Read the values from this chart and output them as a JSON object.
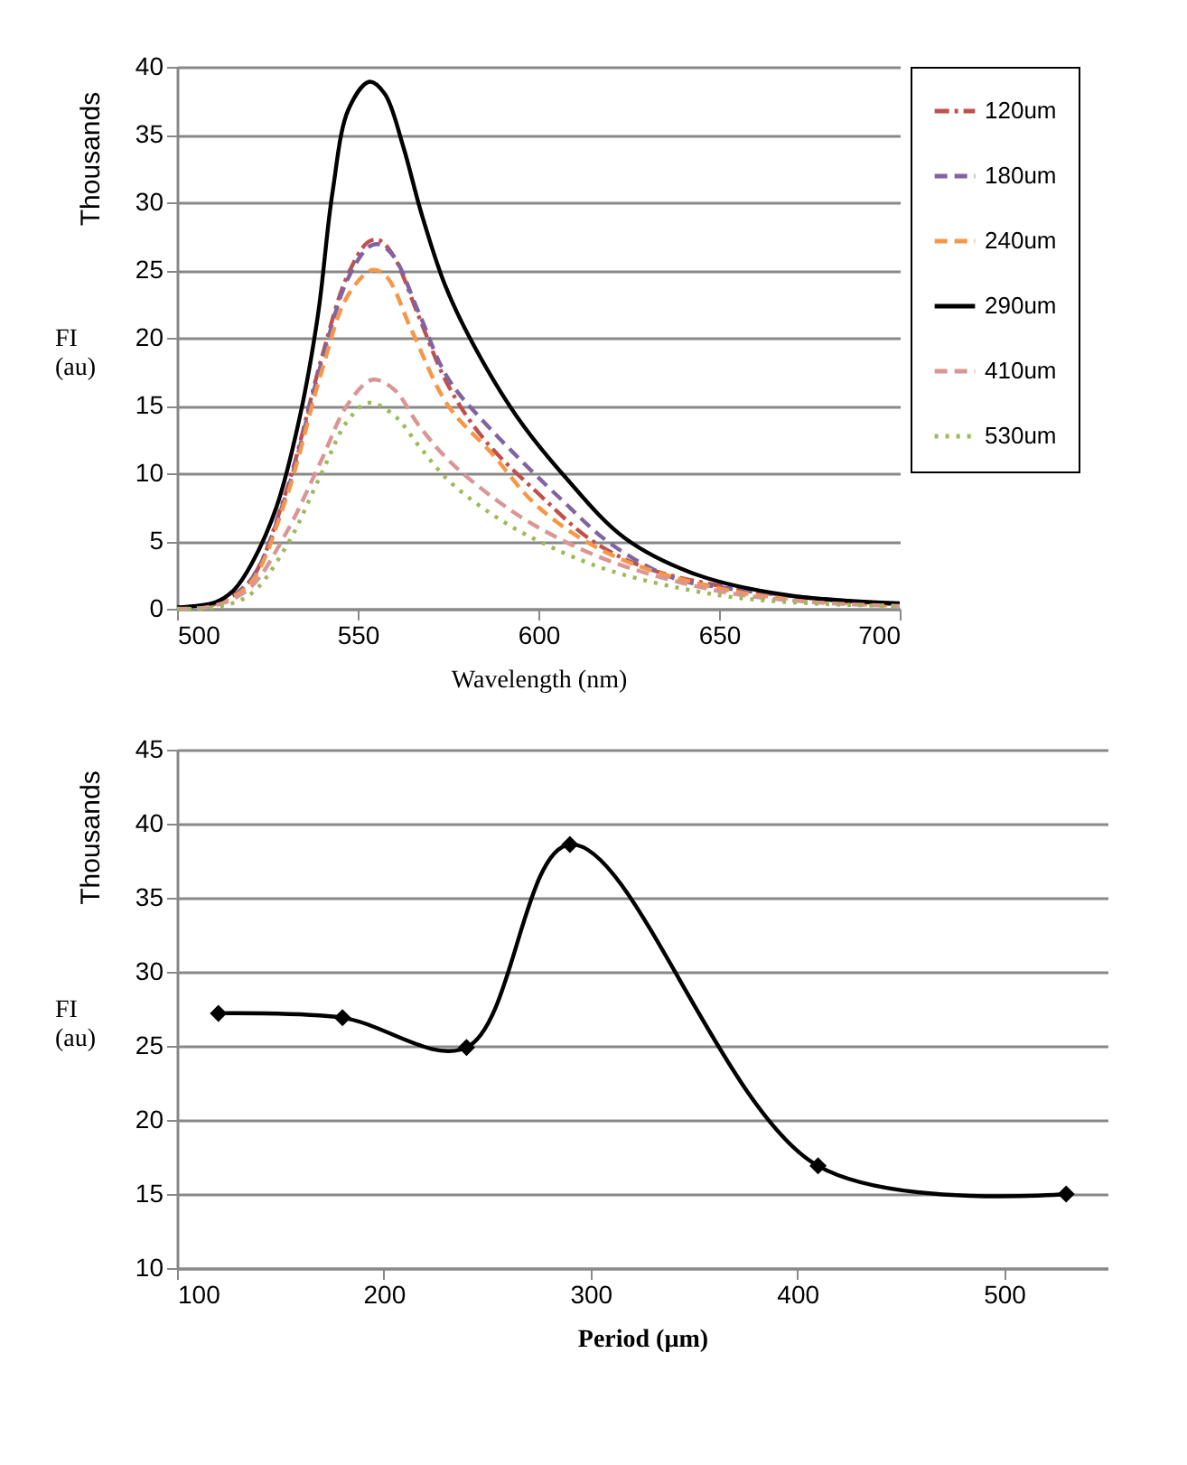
{
  "chart_data": [
    {
      "type": "line",
      "xlabel": "Wavelength (nm)",
      "ylabel": "FI (au)",
      "annotations": [
        "Thousands"
      ],
      "xlim": [
        500,
        700
      ],
      "xticks": [
        500,
        550,
        600,
        650,
        700
      ],
      "ylim": [
        0,
        40
      ],
      "yticks": [
        0,
        5,
        10,
        15,
        20,
        25,
        30,
        35,
        40
      ],
      "grid": "y",
      "legend": "right",
      "marker": "none",
      "series": [
        {
          "name": "120um",
          "color": "#c0504d",
          "line_style": "dashdot",
          "x": [
            500,
            510,
            520,
            530,
            540,
            547,
            553,
            556,
            560,
            567,
            575,
            585,
            600,
            615,
            630,
            650,
            675,
            700
          ],
          "values": [
            0,
            0.3,
            2,
            8.5,
            18.5,
            24.5,
            27.1,
            27.2,
            26,
            21.5,
            16.5,
            12.5,
            8.5,
            5,
            3,
            1.7,
            0.8,
            0.3
          ]
        },
        {
          "name": "180um",
          "color": "#8064a2",
          "line_style": "dashed",
          "x": [
            500,
            510,
            520,
            530,
            540,
            547,
            553,
            556,
            560,
            567,
            575,
            587,
            607,
            620,
            637,
            650,
            675,
            700
          ],
          "values": [
            0,
            0.3,
            2,
            8.3,
            18.2,
            24.2,
            26.7,
            26.9,
            26,
            21.8,
            17,
            13.2,
            7.9,
            4.8,
            2.3,
            1.6,
            0.8,
            0.3
          ]
        },
        {
          "name": "240um",
          "color": "#f79646",
          "line_style": "dashed",
          "x": [
            500,
            510,
            520,
            530,
            540,
            547,
            554,
            558,
            565,
            575,
            587,
            600,
            620,
            650,
            675,
            700
          ],
          "values": [
            0,
            0.3,
            1.8,
            8,
            17.5,
            23,
            25,
            24.5,
            20.5,
            15,
            11.5,
            7.5,
            4,
            1.5,
            0.6,
            0.2
          ]
        },
        {
          "name": "290um",
          "color": "#000000",
          "line_style": "solid",
          "x": [
            500,
            510.8,
            515.8,
            520.8,
            527.5,
            534,
            539,
            543,
            547.5,
            553.3,
            557.5,
            562.5,
            567.5,
            574,
            581,
            594,
            607.5,
            624,
            644,
            669,
            700
          ],
          "values": [
            0.1,
            0.5,
            1.4,
            3.4,
            7.5,
            14.2,
            21.7,
            30.7,
            36.9,
            38.9,
            38,
            34.2,
            29.3,
            24,
            20,
            14.2,
            9.7,
            5.2,
            2.5,
            1,
            0.4
          ]
        },
        {
          "name": "410um",
          "color": "#d99694",
          "line_style": "dashed",
          "x": [
            500,
            510,
            520,
            530,
            540,
            547,
            554,
            560,
            567,
            575,
            587,
            600,
            620,
            650,
            675,
            700
          ],
          "values": [
            0,
            0.2,
            1.5,
            5.5,
            11,
            15,
            16.9,
            16.2,
            13.5,
            11,
            8.3,
            6,
            3.5,
            1.3,
            0.5,
            0.2
          ]
        },
        {
          "name": "530um",
          "color": "#9bbb59",
          "line_style": "dotted",
          "x": [
            500,
            510,
            520,
            530,
            540,
            547,
            553,
            560,
            567,
            575,
            587,
            600,
            620,
            650,
            675,
            700
          ],
          "values": [
            0,
            0.1,
            1,
            4.5,
            10,
            13.8,
            15.2,
            14.3,
            12,
            9.5,
            7,
            5,
            2.8,
            1,
            0.4,
            0.2
          ]
        }
      ]
    },
    {
      "type": "line",
      "xlabel": "Period (µm)",
      "ylabel": "FI (au)",
      "annotations": [
        "Thousands"
      ],
      "xlim": [
        100,
        550
      ],
      "xticks": [
        100,
        200,
        300,
        400,
        500
      ],
      "ylim": [
        10,
        45
      ],
      "yticks": [
        10,
        15,
        20,
        25,
        30,
        35,
        40,
        45
      ],
      "grid": "y",
      "legend": false,
      "marker": "diamond",
      "line_style": "solid",
      "series": [
        {
          "color": "#000000",
          "x": [
            120,
            180,
            240,
            290,
            410,
            530
          ],
          "values": [
            27.2,
            26.9,
            24.9,
            38.6,
            16.9,
            15.0
          ]
        }
      ]
    }
  ]
}
